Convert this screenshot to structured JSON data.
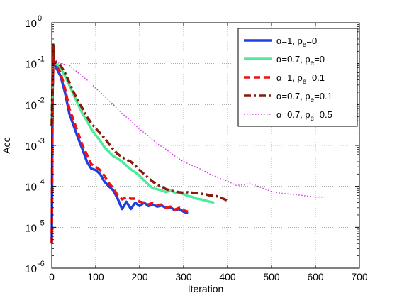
{
  "chart_data": {
    "type": "line",
    "xlabel": "Iteration",
    "ylabel": "Acc",
    "xlim": [
      0,
      700
    ],
    "ylim": [
      1e-06,
      1
    ],
    "y_scale": "log",
    "grid": true,
    "legend_position": "top-right",
    "x_ticks": [
      "0",
      "100",
      "200",
      "300",
      "400",
      "500",
      "600",
      "700"
    ],
    "y_ticks": [
      {
        "value": 1e-06,
        "base": "10",
        "exp": "-6"
      },
      {
        "value": 1e-05,
        "base": "10",
        "exp": "-5"
      },
      {
        "value": 0.0001,
        "base": "10",
        "exp": "-4"
      },
      {
        "value": 0.001,
        "base": "10",
        "exp": "-3"
      },
      {
        "value": 0.01,
        "base": "10",
        "exp": "-2"
      },
      {
        "value": 0.1,
        "base": "10",
        "exp": "-1"
      },
      {
        "value": 1,
        "base": "10",
        "exp": "0"
      }
    ],
    "series": [
      {
        "name": "α=1, p_e=0",
        "legend_main": "α=1, p",
        "legend_sub": "e",
        "legend_tail": "=0",
        "color": "#1f3fe0",
        "style": "solid",
        "points": [
          [
            0,
            4e-06
          ],
          [
            2,
            0.02
          ],
          [
            4,
            0.2
          ],
          [
            5,
            0.1
          ],
          [
            10,
            0.08
          ],
          [
            20,
            0.05
          ],
          [
            30,
            0.02
          ],
          [
            40,
            0.006
          ],
          [
            50,
            0.003
          ],
          [
            60,
            0.0015
          ],
          [
            70,
            0.0008
          ],
          [
            80,
            0.0004
          ],
          [
            90,
            0.00027
          ],
          [
            100,
            0.00025
          ],
          [
            110,
            0.0002
          ],
          [
            120,
            0.00013
          ],
          [
            130,
            0.0001
          ],
          [
            140,
            8e-05
          ],
          [
            150,
            5e-05
          ],
          [
            160,
            2.8e-05
          ],
          [
            170,
            4.2e-05
          ],
          [
            180,
            2.8e-05
          ],
          [
            190,
            4e-05
          ],
          [
            200,
            3.3e-05
          ],
          [
            210,
            4e-05
          ],
          [
            220,
            3.3e-05
          ],
          [
            230,
            3.6e-05
          ],
          [
            240,
            3.2e-05
          ],
          [
            250,
            3.4e-05
          ],
          [
            260,
            3e-05
          ],
          [
            270,
            3.1e-05
          ],
          [
            280,
            2.6e-05
          ],
          [
            290,
            2.8e-05
          ],
          [
            300,
            2.4e-05
          ],
          [
            310,
            2.2e-05
          ]
        ]
      },
      {
        "name": "α=0.7, p_e=0",
        "legend_main": "α=0.7, p",
        "legend_sub": "e",
        "legend_tail": "=0",
        "color": "#4dec9c",
        "style": "solid",
        "points": [
          [
            0,
            0.003
          ],
          [
            2,
            0.05
          ],
          [
            4,
            0.3
          ],
          [
            5,
            0.12
          ],
          [
            10,
            0.1
          ],
          [
            20,
            0.08
          ],
          [
            30,
            0.05
          ],
          [
            40,
            0.03
          ],
          [
            50,
            0.017
          ],
          [
            60,
            0.01
          ],
          [
            70,
            0.006
          ],
          [
            80,
            0.004
          ],
          [
            90,
            0.0025
          ],
          [
            100,
            0.0018
          ],
          [
            110,
            0.0013
          ],
          [
            120,
            0.0009
          ],
          [
            130,
            0.0007
          ],
          [
            140,
            0.00055
          ],
          [
            150,
            0.00048
          ],
          [
            160,
            0.0004
          ],
          [
            170,
            0.00032
          ],
          [
            180,
            0.00026
          ],
          [
            190,
            0.00022
          ],
          [
            200,
            0.00018
          ],
          [
            210,
            0.00014
          ],
          [
            220,
            0.00011
          ],
          [
            230,
            9e-05
          ],
          [
            240,
            8.5e-05
          ],
          [
            250,
            8e-05
          ],
          [
            260,
            7.2e-05
          ],
          [
            270,
            8e-05
          ],
          [
            280,
            7e-05
          ],
          [
            290,
            7e-05
          ],
          [
            300,
            6.5e-05
          ],
          [
            310,
            5.8e-05
          ],
          [
            320,
            5.5e-05
          ],
          [
            330,
            5e-05
          ],
          [
            340,
            4.8e-05
          ],
          [
            350,
            4.5e-05
          ],
          [
            360,
            4.2e-05
          ],
          [
            370,
            4e-05
          ]
        ]
      },
      {
        "name": "α=1, p_e=0.1",
        "legend_main": "α=1, p",
        "legend_sub": "e",
        "legend_tail": "=0.1",
        "color": "#ee1111",
        "style": "dashed",
        "points": [
          [
            0,
            4e-06
          ],
          [
            2,
            0.02
          ],
          [
            4,
            0.2
          ],
          [
            5,
            0.11
          ],
          [
            10,
            0.09
          ],
          [
            20,
            0.06
          ],
          [
            30,
            0.025
          ],
          [
            40,
            0.008
          ],
          [
            50,
            0.004
          ],
          [
            60,
            0.002
          ],
          [
            70,
            0.001
          ],
          [
            80,
            0.0006
          ],
          [
            90,
            0.00035
          ],
          [
            100,
            0.0003
          ],
          [
            110,
            0.00025
          ],
          [
            120,
            0.00018
          ],
          [
            130,
            0.00012
          ],
          [
            140,
            9e-05
          ],
          [
            150,
            6e-05
          ],
          [
            160,
            4.8e-05
          ],
          [
            170,
            5.5e-05
          ],
          [
            180,
            5e-05
          ],
          [
            190,
            5e-05
          ],
          [
            200,
            4.2e-05
          ],
          [
            210,
            4e-05
          ],
          [
            220,
            3.6e-05
          ],
          [
            230,
            4e-05
          ],
          [
            240,
            3.5e-05
          ],
          [
            250,
            3.6e-05
          ],
          [
            260,
            3e-05
          ],
          [
            270,
            3.2e-05
          ],
          [
            280,
            2.7e-05
          ],
          [
            290,
            3e-05
          ],
          [
            300,
            2.6e-05
          ],
          [
            310,
            2.4e-05
          ]
        ]
      },
      {
        "name": "α=0.7, p_e=0.1",
        "legend_main": "α=0.7, p",
        "legend_sub": "e",
        "legend_tail": "=0.1",
        "color": "#8b1a0a",
        "style": "dashdot",
        "points": [
          [
            0,
            0.003
          ],
          [
            2,
            0.05
          ],
          [
            4,
            0.3
          ],
          [
            5,
            0.13
          ],
          [
            10,
            0.11
          ],
          [
            20,
            0.09
          ],
          [
            30,
            0.06
          ],
          [
            40,
            0.035
          ],
          [
            50,
            0.02
          ],
          [
            60,
            0.012
          ],
          [
            70,
            0.008
          ],
          [
            80,
            0.005
          ],
          [
            90,
            0.0035
          ],
          [
            100,
            0.0026
          ],
          [
            110,
            0.002
          ],
          [
            120,
            0.0015
          ],
          [
            130,
            0.0011
          ],
          [
            140,
            0.0008
          ],
          [
            150,
            0.00062
          ],
          [
            160,
            0.00052
          ],
          [
            170,
            0.00045
          ],
          [
            180,
            0.0004
          ],
          [
            190,
            0.00032
          ],
          [
            200,
            0.00025
          ],
          [
            210,
            0.0002
          ],
          [
            220,
            0.00016
          ],
          [
            230,
            0.00013
          ],
          [
            240,
            0.00011
          ],
          [
            250,
            0.0001
          ],
          [
            260,
            8.5e-05
          ],
          [
            270,
            8e-05
          ],
          [
            280,
            7.5e-05
          ],
          [
            290,
            7.2e-05
          ],
          [
            300,
            7e-05
          ],
          [
            310,
            7.2e-05
          ],
          [
            320,
            7e-05
          ],
          [
            330,
            6.8e-05
          ],
          [
            340,
            6.6e-05
          ],
          [
            350,
            6.4e-05
          ],
          [
            360,
            6e-05
          ],
          [
            370,
            6e-05
          ],
          [
            380,
            5.5e-05
          ],
          [
            390,
            5e-05
          ],
          [
            400,
            4.5e-05
          ]
        ]
      },
      {
        "name": "α=0.7, p_e=0.5",
        "legend_main": "α=0.7, p",
        "legend_sub": "e",
        "legend_tail": "=0.5",
        "color": "#cc44dd",
        "style": "dotted",
        "points": [
          [
            10,
            0.12
          ],
          [
            20,
            0.1
          ],
          [
            40,
            0.09
          ],
          [
            60,
            0.06
          ],
          [
            80,
            0.04
          ],
          [
            100,
            0.025
          ],
          [
            120,
            0.016
          ],
          [
            140,
            0.01
          ],
          [
            160,
            0.006
          ],
          [
            180,
            0.004
          ],
          [
            200,
            0.0025
          ],
          [
            220,
            0.0017
          ],
          [
            240,
            0.0011
          ],
          [
            260,
            0.0008
          ],
          [
            280,
            0.00055
          ],
          [
            300,
            0.0004
          ],
          [
            320,
            0.00032
          ],
          [
            340,
            0.00026
          ],
          [
            360,
            0.0002
          ],
          [
            380,
            0.00016
          ],
          [
            400,
            0.000135
          ],
          [
            420,
            0.000105
          ],
          [
            440,
            0.00011
          ],
          [
            450,
            0.00012
          ],
          [
            460,
            0.00011
          ],
          [
            480,
            9e-05
          ],
          [
            500,
            7.5e-05
          ],
          [
            520,
            6.8e-05
          ],
          [
            540,
            6.5e-05
          ],
          [
            560,
            6.2e-05
          ],
          [
            580,
            5.8e-05
          ],
          [
            600,
            5.5e-05
          ],
          [
            620,
            5.5e-05
          ]
        ]
      }
    ]
  }
}
